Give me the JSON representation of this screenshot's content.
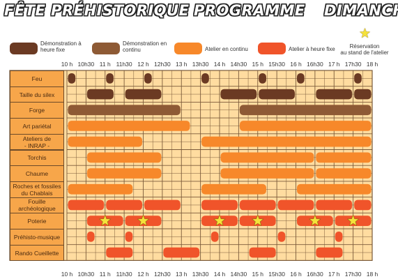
{
  "header": {
    "left_title": "FÊTE PRÉHISTORIQUE",
    "center_title": "PROGRAMME",
    "right_title": "DIMANCHE"
  },
  "legend": [
    {
      "label": "Démonstration à\nheure fixe",
      "color": "#6b3a23",
      "kind": "swatch"
    },
    {
      "label": "Démonstration en\ncontinu",
      "color": "#8e5a35",
      "kind": "swatch"
    },
    {
      "label": "Atelier en continu",
      "color": "#f7882a",
      "kind": "swatch"
    },
    {
      "label": "Atelier à heure fixe",
      "color": "#f0542a",
      "kind": "swatch"
    },
    {
      "label": "Réservation\nau stand de l'atelier",
      "color": "#f5e23a",
      "kind": "star"
    }
  ],
  "times": [
    "10 h",
    "10h30",
    "11 h",
    "11h30",
    "12 h",
    "12h30",
    "13 h",
    "13h30",
    "14 h",
    "14h30",
    "15 h",
    "15h30",
    "16 h",
    "16h30",
    "17 h",
    "17h30",
    "18 h"
  ],
  "colors": {
    "grid_bg": "#ffdca0",
    "grid_line": "#7a5a3a",
    "label_bg": "#f7a64a",
    "demo_fixed": "#6b3a23",
    "demo_continuous": "#8e5a35",
    "atelier_continuous": "#f7882a",
    "atelier_fixed": "#f0542a",
    "star": "#f5e23a"
  },
  "rows": [
    {
      "label": "Feu",
      "type": "demo_fixed",
      "bars": [
        [
          10,
          10.25
        ],
        [
          11,
          11.25
        ],
        [
          12,
          12.25
        ],
        [
          13.5,
          13.75
        ],
        [
          15,
          15.25
        ],
        [
          16,
          16.25
        ],
        [
          17.5,
          17.75
        ]
      ],
      "stars": []
    },
    {
      "label": "Taille du silex",
      "type": "demo_fixed",
      "bars": [
        [
          10.5,
          11.25
        ],
        [
          11.5,
          12.5
        ],
        [
          14,
          15
        ],
        [
          15,
          16
        ],
        [
          16.5,
          17.5
        ],
        [
          17.5,
          18
        ]
      ],
      "stars": []
    },
    {
      "label": "Forge",
      "type": "demo_continuous",
      "bars": [
        [
          10,
          13
        ],
        [
          14.5,
          18
        ]
      ],
      "stars": []
    },
    {
      "label": "Art pariétal",
      "type": "atelier_continuous",
      "bars": [
        [
          10,
          13.25
        ],
        [
          14.5,
          18
        ]
      ],
      "stars": []
    },
    {
      "label": "Ateliers de\n- INRAP -",
      "type": "atelier_continuous",
      "bars": [
        [
          10,
          12
        ],
        [
          13.5,
          18
        ]
      ],
      "stars": []
    },
    {
      "label": "Torchis",
      "type": "atelier_continuous",
      "bars": [
        [
          10.5,
          12.5
        ],
        [
          14,
          16.5
        ],
        [
          16.5,
          18
        ]
      ],
      "stars": []
    },
    {
      "label": "Chaume",
      "type": "atelier_continuous",
      "bars": [
        [
          10.5,
          12.5
        ],
        [
          14,
          16.5
        ],
        [
          16.5,
          18
        ]
      ],
      "stars": []
    },
    {
      "label": "Roches et fossiles\ndu Chablais",
      "type": "atelier_continuous",
      "bars": [
        [
          10,
          11.75
        ],
        [
          13.5,
          15.25
        ],
        [
          16,
          18
        ]
      ],
      "stars": []
    },
    {
      "label": "Fouille\narchéologique",
      "type": "atelier_fixed",
      "bars": [
        [
          10,
          11
        ],
        [
          11,
          12
        ],
        [
          12,
          13
        ],
        [
          13.5,
          14.5
        ],
        [
          14.5,
          15.5
        ],
        [
          15.5,
          16.5
        ],
        [
          16.5,
          17.5
        ],
        [
          17.5,
          18
        ]
      ],
      "stars": []
    },
    {
      "label": "Poterie",
      "type": "atelier_fixed",
      "bars": [
        [
          10.5,
          11.5
        ],
        [
          11.5,
          12.5
        ],
        [
          13.5,
          14.5
        ],
        [
          14.5,
          15.5
        ],
        [
          16,
          17
        ],
        [
          17,
          18
        ]
      ],
      "stars": [
        11,
        12,
        14,
        15,
        16.5,
        17.5
      ]
    },
    {
      "label": "Préhisto-musique",
      "type": "atelier_fixed",
      "bars": [
        [
          10.5,
          10.75
        ],
        [
          11.5,
          11.75
        ],
        [
          13.75,
          14
        ],
        [
          15.5,
          15.75
        ],
        [
          17,
          17.25
        ]
      ],
      "stars": []
    },
    {
      "label": "Rando Cueillette",
      "type": "atelier_fixed",
      "bars": [
        [
          11,
          11.75
        ],
        [
          12.5,
          13.5
        ],
        [
          14.75,
          15.5
        ],
        [
          16.5,
          17.25
        ]
      ],
      "stars": []
    }
  ]
}
